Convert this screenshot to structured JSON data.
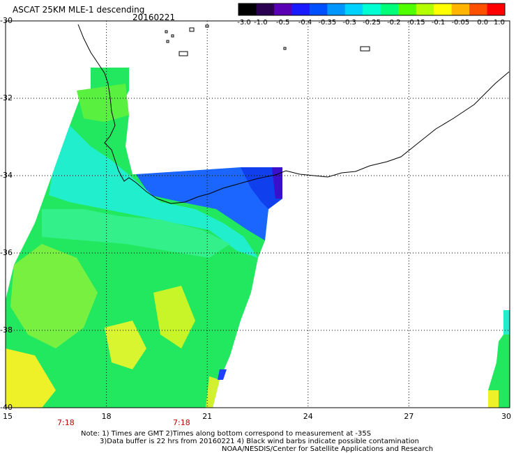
{
  "header": {
    "product": "ASCAT 25KM MLE-1 descending",
    "date": "20160221"
  },
  "colorbar": {
    "labels": [
      "-3.0",
      "-1.0",
      "-0.5",
      "-0.4",
      "-0.35",
      "-0.3",
      "-0.25",
      "-0.2",
      "-0.15",
      "-0.1",
      "-0.05",
      "0.0",
      "1.0"
    ],
    "colors": [
      "#000000",
      "#2a0050",
      "#5a00b4",
      "#1a1aff",
      "#0050ff",
      "#0096ff",
      "#00d2ff",
      "#00ffd2",
      "#00ff78",
      "#50ff00",
      "#b4ff00",
      "#ffff00",
      "#ffb400",
      "#ff5000",
      "#ff0000"
    ]
  },
  "map": {
    "lat_labels": [
      "-30",
      "-32",
      "-34",
      "-36",
      "-38",
      "-40"
    ],
    "lon_labels": [
      "15",
      "18",
      "21",
      "24",
      "27",
      "30"
    ],
    "times": [
      "7:18",
      "7:18"
    ],
    "lat_range": [
      -40,
      -30
    ],
    "lon_range": [
      15,
      30
    ]
  },
  "notes": {
    "line1": "Note: 1) Times are GMT 2)Times along bottom correspond to measurement at -35S",
    "line2": "3)Data buffer is 22 hrs from 20160221 4) Black wind barbs indicate possible contamination",
    "line3": "NOAA/NESDIS/Center for Satellite Applications and Research"
  }
}
